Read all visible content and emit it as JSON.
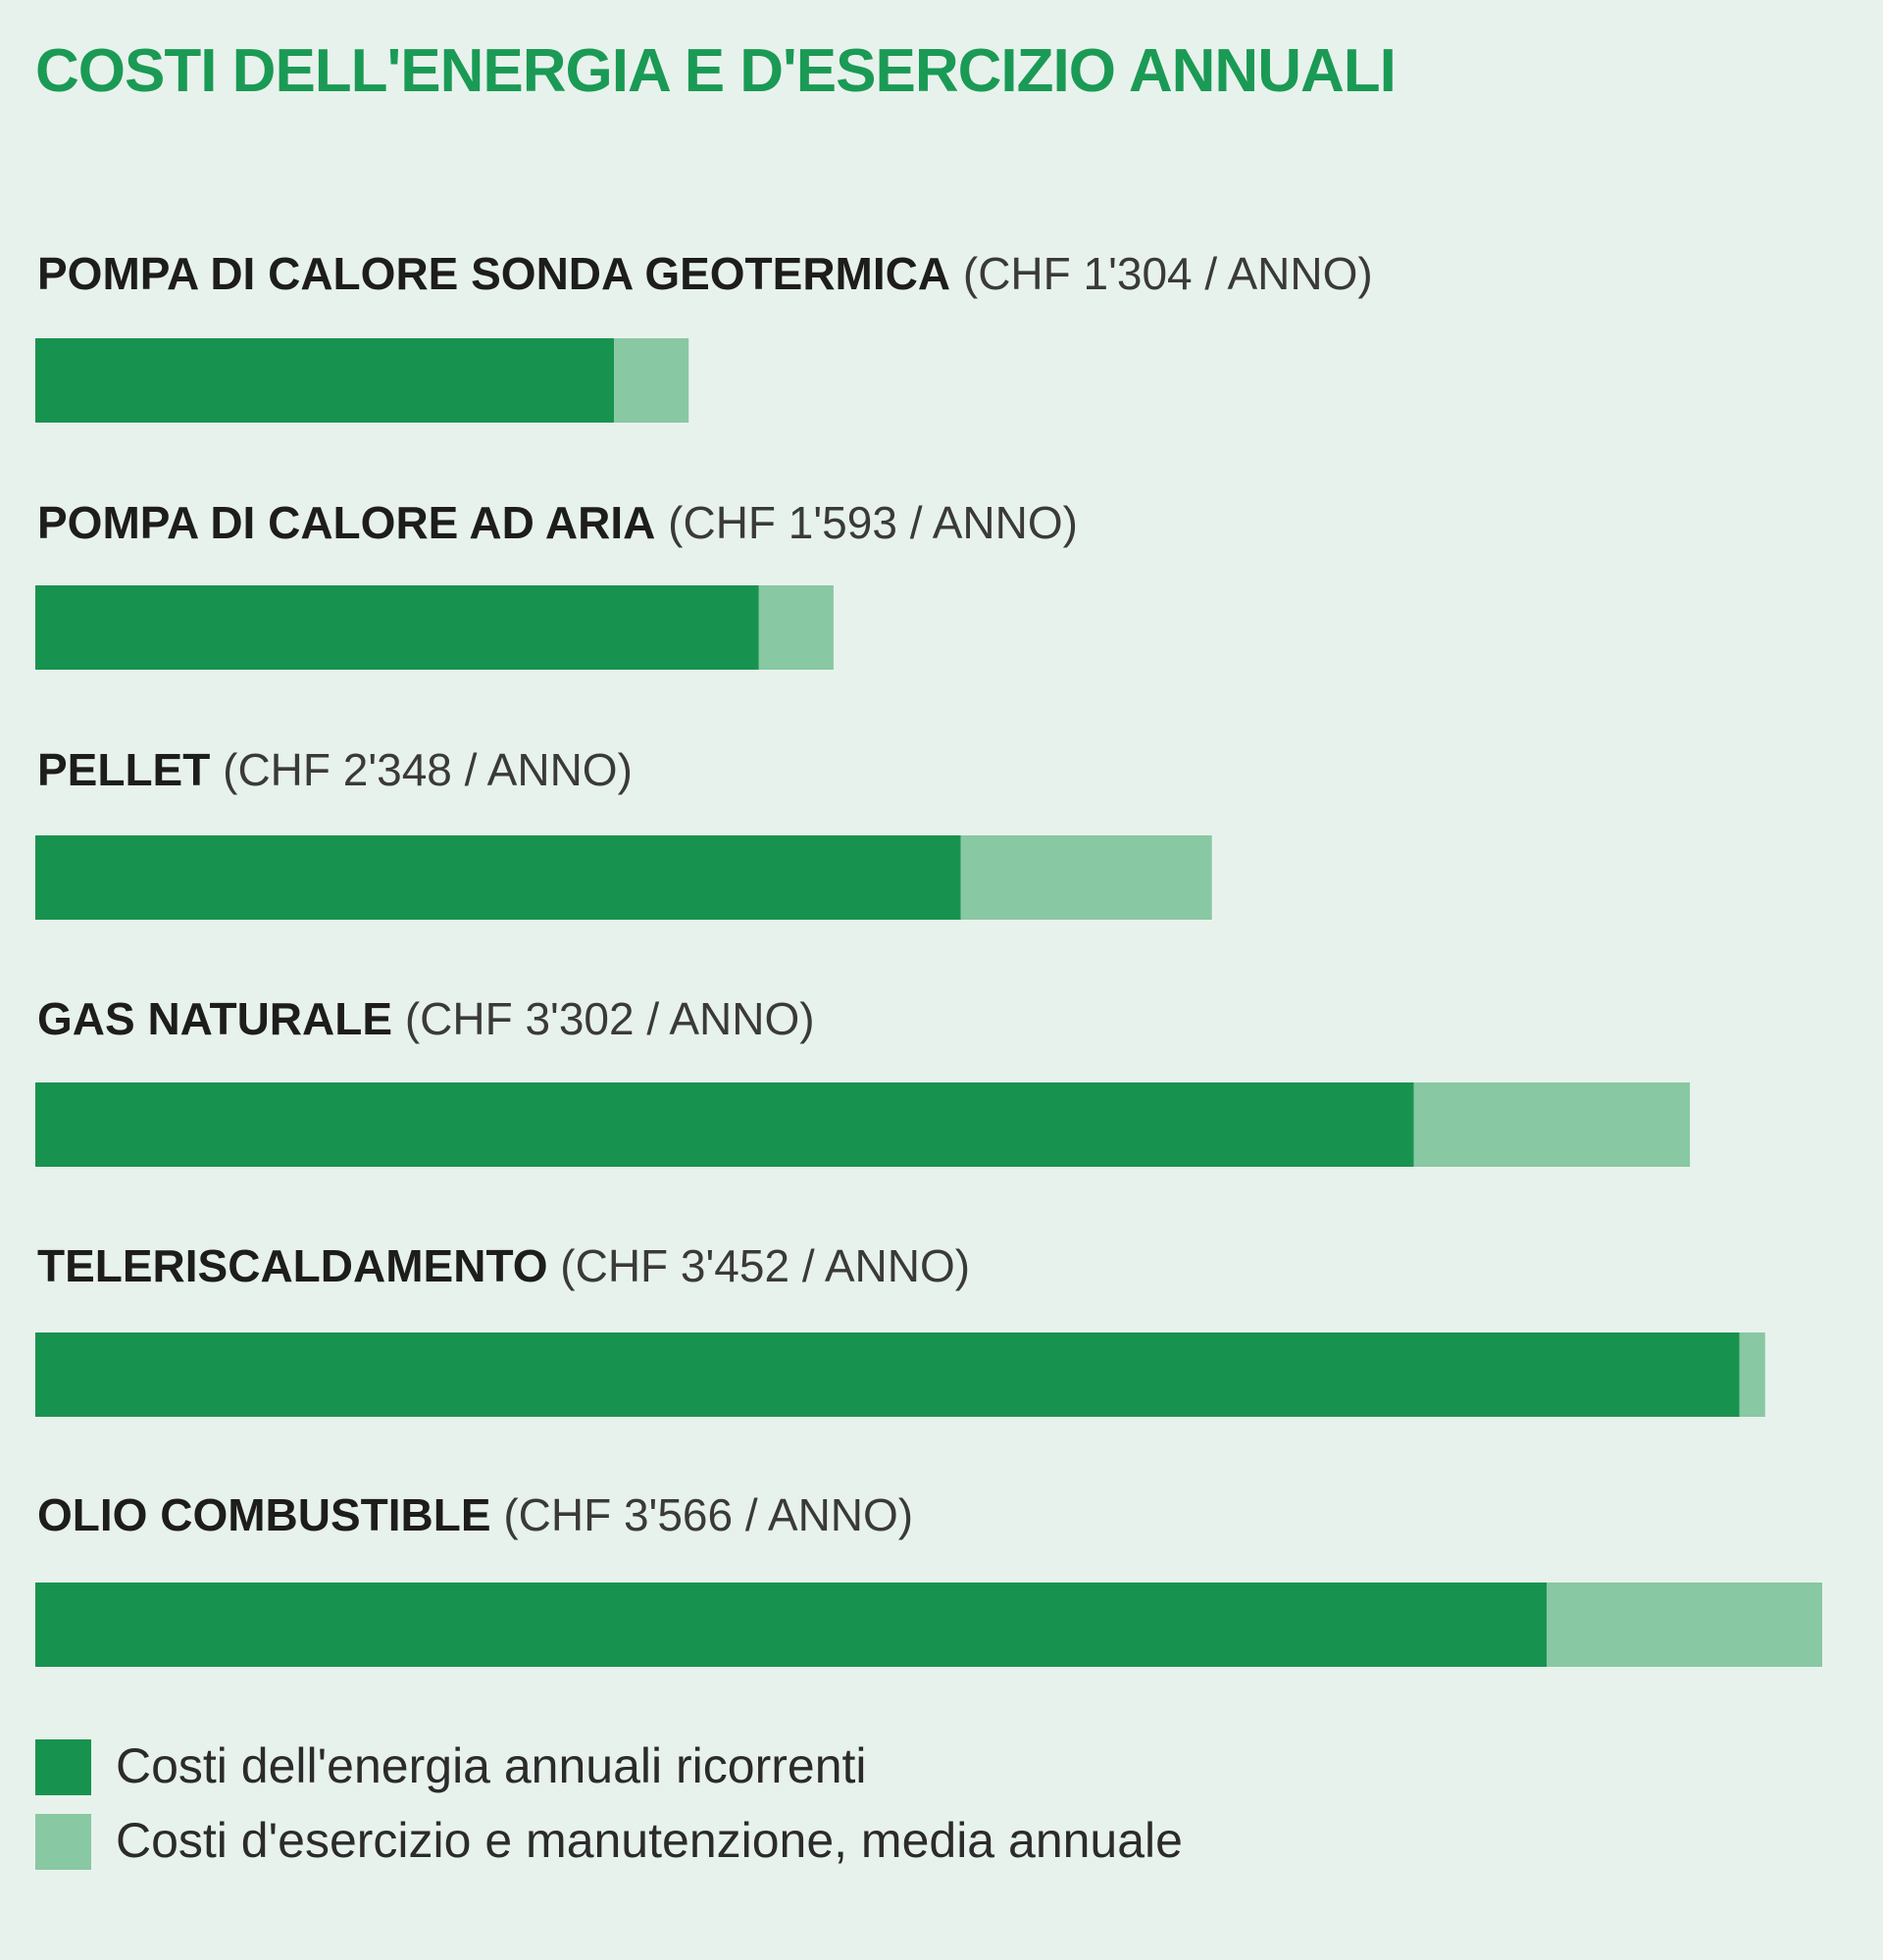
{
  "colors": {
    "background": "#e8f2ec",
    "title": "#1a9a55",
    "energy": "#18934f",
    "maintenance": "#88c8a2"
  },
  "chart_data": {
    "type": "bar",
    "orientation": "horizontal",
    "stacked": true,
    "title": "COSTI DELL'ENERGIA E D'ESERCIZIO ANNUALI",
    "unit": "CHF / ANNO",
    "categories": [
      "POMPA DI CALORE SONDA GEOTERMICA",
      "POMPA DI CALORE AD ARIA",
      "PELLET",
      "GAS NATURALE",
      "TELERISCALDAMENTO",
      "OLIO COMBUSTIBLE"
    ],
    "value_labels": [
      "(CHF 1'304 / ANNO)",
      "(CHF 1'593 / ANNO)",
      "(CHF 2'348 / ANNO)",
      "(CHF 3'302 / ANNO)",
      "(CHF 3'452 / ANNO)",
      "(CHF 3'566 / ANNO)"
    ],
    "totals": [
      1304,
      1593,
      2348,
      3302,
      3452,
      3566
    ],
    "series": [
      {
        "name": "Costi dell'energia annuali ricorrenti",
        "values": [
          1155,
          1444,
          1847,
          2751,
          3401,
          3016
        ]
      },
      {
        "name": "Costi d'esercizio e manutenzione, media annuale",
        "values": [
          149,
          149,
          501,
          551,
          51,
          550
        ]
      }
    ],
    "xlim": [
      0,
      3566
    ],
    "grid": false,
    "legend_position": "bottom-left"
  }
}
